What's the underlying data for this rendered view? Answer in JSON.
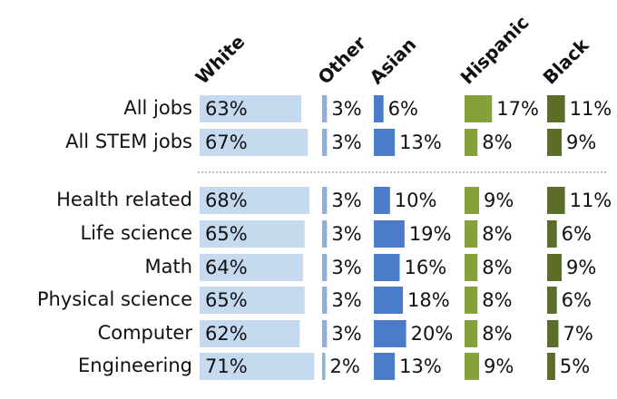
{
  "chart_data": {
    "type": "bar",
    "categories": [
      "All jobs",
      "All STEM jobs",
      "Health related",
      "Life science",
      "Math",
      "Physical science",
      "Computer",
      "Engineering"
    ],
    "series": [
      {
        "name": "White",
        "color": "#c5d9ef",
        "values": [
          63,
          67,
          68,
          65,
          64,
          65,
          62,
          71
        ],
        "value_labels": [
          "63%",
          "67%",
          "68%",
          "65%",
          "64%",
          "65%",
          "62%",
          "71%"
        ]
      },
      {
        "name": "Other",
        "color": "#8eb0de",
        "values": [
          3,
          3,
          3,
          3,
          3,
          3,
          3,
          2
        ],
        "value_labels": [
          "3%",
          "3%",
          "3%",
          "3%",
          "3%",
          "3%",
          "3%",
          "2%"
        ]
      },
      {
        "name": "Asian",
        "color": "#4a7cc9",
        "values": [
          6,
          13,
          10,
          19,
          16,
          18,
          20,
          13
        ],
        "value_labels": [
          "6%",
          "13%",
          "10%",
          "19%",
          "16%",
          "18%",
          "20%",
          "13%"
        ]
      },
      {
        "name": "Hispanic",
        "color": "#86a13a",
        "values": [
          17,
          8,
          9,
          8,
          8,
          8,
          8,
          9
        ],
        "value_labels": [
          "17%",
          "8%",
          "9%",
          "8%",
          "8%",
          "8%",
          "8%",
          "9%"
        ]
      },
      {
        "name": "Black",
        "color": "#5a6e2a",
        "values": [
          11,
          9,
          11,
          6,
          9,
          6,
          7,
          5
        ],
        "value_labels": [
          "11%",
          "9%",
          "11%",
          "6%",
          "9%",
          "6%",
          "7%",
          "5%"
        ]
      }
    ]
  }
}
